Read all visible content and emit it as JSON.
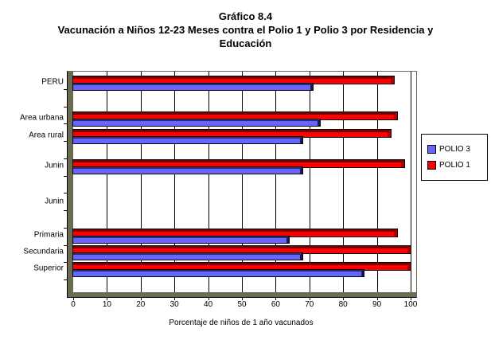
{
  "title": {
    "line1": "Gráfico 8.4",
    "line2": "Vacunación a Niños 12-23 Meses contra el Polio 1 y Polio 3 por Residencia y",
    "line3": "Educación"
  },
  "chart_data": {
    "type": "bar",
    "orientation": "horizontal",
    "title": "Gráfico 8.4 Vacunación a Niños 12-23 Meses contra el Polio 1 y Polio 3 por Residencia y Educación",
    "categories": [
      "PERU",
      "Area urbana",
      "Area rural",
      "Junin",
      "Junin",
      "Primaria",
      "Secundaria",
      "Superior"
    ],
    "series": [
      {
        "name": "POLIO 1",
        "color": "#FF0000",
        "values": [
          95,
          96,
          94,
          98,
          null,
          96,
          100,
          100
        ]
      },
      {
        "name": "POLIO 3",
        "color": "#6666FF",
        "values": [
          71,
          73,
          68,
          68,
          null,
          64,
          68,
          86
        ]
      }
    ],
    "xlabel": "Porcentaje de niños de 1 año vacunados",
    "xlim": [
      0,
      100
    ],
    "xticks": [
      0,
      10,
      20,
      30,
      40,
      50,
      60,
      70,
      80,
      90,
      100
    ],
    "grid": true,
    "legend_position": "right",
    "wall_color": "#6B6B52",
    "gridline_color": "#000000"
  },
  "legend": {
    "items": [
      {
        "label": "POLIO 3",
        "color": "#6666FF"
      },
      {
        "label": "POLIO 1",
        "color": "#FF0000"
      }
    ]
  }
}
